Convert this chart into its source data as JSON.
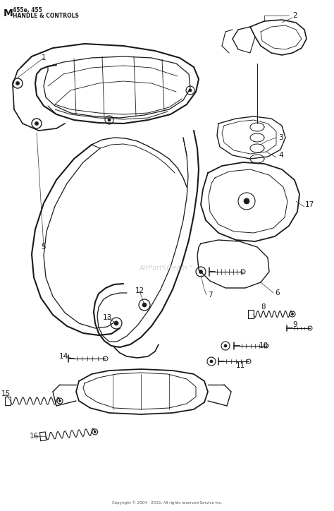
{
  "title_bold": "M",
  "title_model": "455e, 455",
  "title_section": "HANDLE & CONTROLS",
  "bg_color": "#ffffff",
  "line_color": "#1a1a1a",
  "label_color": "#000000",
  "watermark": "AltPartStream™",
  "footer": "Copyright © 2004 - 2015, All rights reserved Service Inc.",
  "fig_width": 4.74,
  "fig_height": 7.24,
  "dpi": 100
}
